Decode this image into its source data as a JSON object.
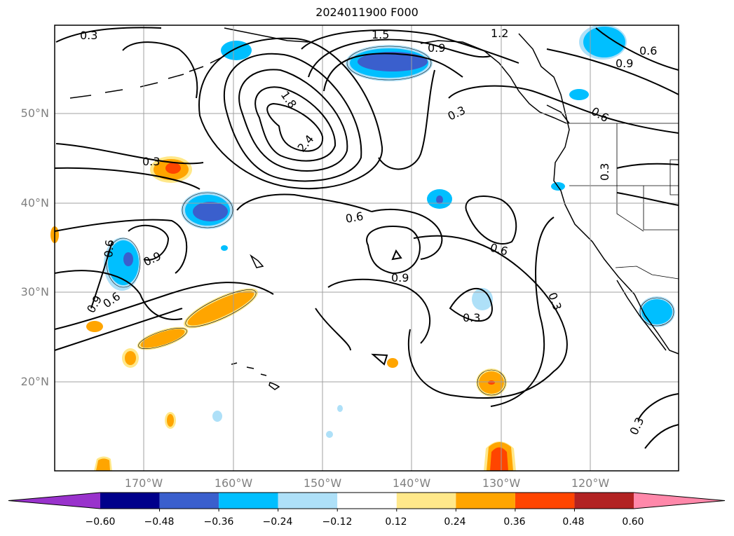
{
  "title": "2024011900 F000",
  "lat_labels": [
    "50°N",
    "40°N",
    "30°N",
    "20°N"
  ],
  "lon_labels": [
    "170°W",
    "160°W",
    "150°W",
    "140°W",
    "130°W",
    "120°W"
  ],
  "contour_labels": [
    "0.3",
    "1.5",
    "1.2",
    "0.9",
    "0.6",
    "0.9",
    "1.8",
    "2.4",
    "0.3",
    "0.6",
    "0.3",
    "0.3",
    "0.6",
    "0.6",
    "0.9",
    "0.9",
    "0.6",
    "0.9",
    "0.6",
    "0.3",
    "0.3",
    "0.3"
  ],
  "colorbar": {
    "tick_labels": [
      "−0.60",
      "−0.48",
      "−0.36",
      "−0.24",
      "−0.12",
      "0.12",
      "0.24",
      "0.36",
      "0.48",
      "0.60"
    ],
    "colors": [
      "#9932cc",
      "#00008b",
      "#3a5fcd",
      "#00bfff",
      "#aee0f8",
      "#ffffff",
      "#ffe88a",
      "#ffa500",
      "#ff4500",
      "#b22222",
      "#ff88aa"
    ]
  },
  "fill_colors": {
    "neg_light": "#aee0f8",
    "neg_mid": "#00bfff",
    "neg_dark": "#3a5fcd",
    "pos_light": "#ffe88a",
    "pos_mid": "#ffa500",
    "pos_dark": "#ff4500"
  }
}
